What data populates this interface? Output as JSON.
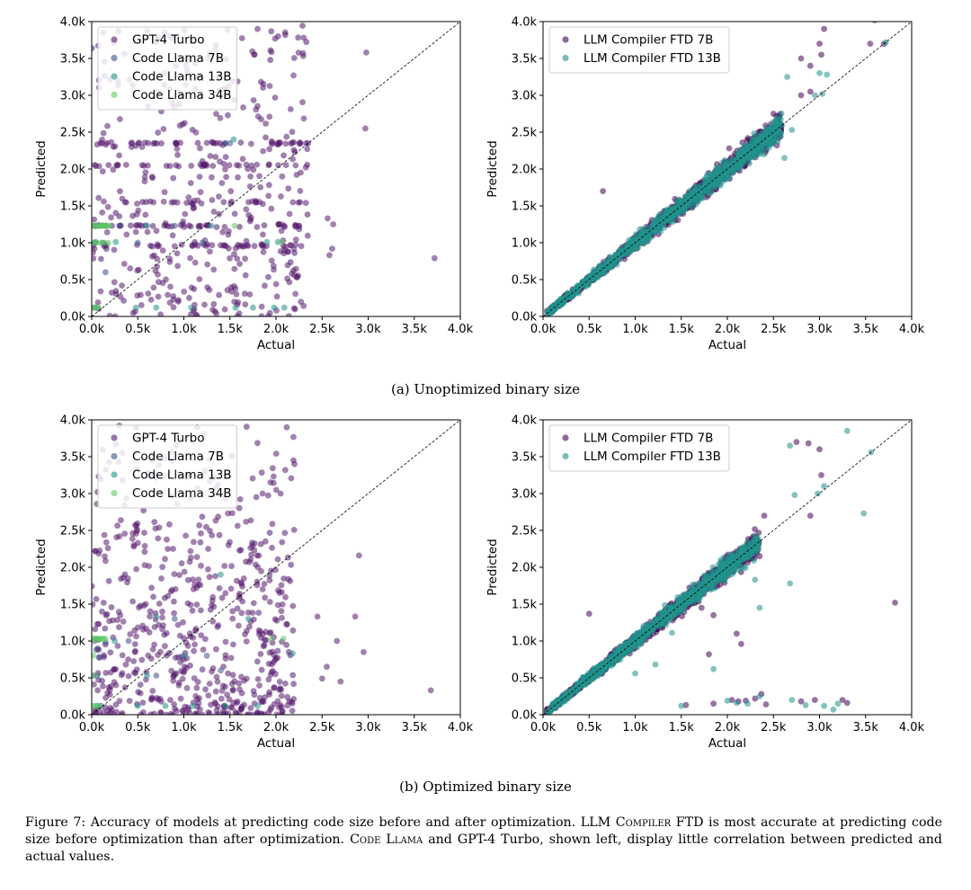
{
  "subcaptions": {
    "a": "(a) Unoptimized binary size",
    "b": "(b) Optimized binary size"
  },
  "caption": {
    "lead": "Figure 7: Accuracy of models at predicting code size before and after optimization.",
    "model": "LLM Compiler",
    "ftd_rest": "FTD is most accurate at predicting code size before optimization than after optimization.",
    "codellama": "Code Llama",
    "end": "and GPT-4 Turbo, shown left, display little correlation between predicted and actual values."
  },
  "colors": {
    "gpt4": "#551a6e",
    "codellama7b": "#3b528b",
    "codellama13b": "#21918c",
    "codellama34b": "#5ec962",
    "ftd7b": "#440154",
    "ftd13b": "#21918c",
    "diagonal": "#000000"
  },
  "chart_data": [
    {
      "id": "a-left",
      "type": "scatter",
      "xlabel": "Actual",
      "ylabel": "Predicted",
      "xlim": [
        0,
        4000
      ],
      "ylim": [
        0,
        4000
      ],
      "xticks": [
        "0.0k",
        "0.5k",
        "1.0k",
        "1.5k",
        "2.0k",
        "2.5k",
        "3.0k",
        "3.5k",
        "4.0k"
      ],
      "yticks": [
        "0.0k",
        "0.5k",
        "1.0k",
        "1.5k",
        "2.0k",
        "2.5k",
        "3.0k",
        "3.5k",
        "4.0k"
      ],
      "legend_position": "top-left",
      "diagonal": true,
      "series": [
        {
          "name": "GPT-4 Turbo",
          "color": "#551a6e",
          "pattern": "uniform",
          "n": 560,
          "xmax": 2350,
          "rows": [
            2350,
            2050,
            1550,
            1230,
            960
          ],
          "outliers": [
            [
              2980,
              3580
            ],
            [
              2970,
              2550
            ],
            [
              3720,
              790
            ],
            [
              2580,
              830
            ],
            [
              2620,
              1250
            ],
            [
              2560,
              1330
            ],
            [
              2610,
              920
            ],
            [
              2100,
              3820
            ],
            [
              2300,
              3780
            ],
            [
              1800,
              3900
            ]
          ]
        },
        {
          "name": "Code Llama 7B",
          "color": "#3b528b",
          "pattern": "bands",
          "points": [
            [
              20,
              1230
            ],
            [
              60,
              1230
            ],
            [
              120,
              1000
            ],
            [
              40,
              1000
            ],
            [
              80,
              1230
            ],
            [
              30,
              120
            ],
            [
              1200,
              1000
            ],
            [
              500,
              1000
            ],
            [
              1450,
              2350
            ],
            [
              300,
              1230
            ],
            [
              150,
              600
            ],
            [
              900,
              1230
            ],
            [
              1500,
              2350
            ]
          ]
        },
        {
          "name": "Code Llama 13B",
          "color": "#21918c",
          "pattern": "bands",
          "points": [
            [
              50,
              120
            ],
            [
              480,
              120
            ],
            [
              700,
              120
            ],
            [
              1080,
              120
            ],
            [
              1560,
              120
            ],
            [
              1750,
              120
            ],
            [
              1980,
              120
            ],
            [
              2090,
              120
            ],
            [
              260,
              1010
            ],
            [
              1900,
              1010
            ],
            [
              40,
              1010
            ],
            [
              600,
              1230
            ],
            [
              1300,
              1230
            ],
            [
              2020,
              1010
            ],
            [
              150,
              1230
            ],
            [
              1540,
              2400
            ]
          ]
        },
        {
          "name": "Code Llama 34B",
          "color": "#5ec962",
          "pattern": "bands",
          "points": [
            [
              10,
              1230
            ],
            [
              30,
              1230
            ],
            [
              50,
              1230
            ],
            [
              70,
              1230
            ],
            [
              90,
              1230
            ],
            [
              110,
              1230
            ],
            [
              130,
              1230
            ],
            [
              150,
              1230
            ],
            [
              170,
              1230
            ],
            [
              190,
              1230
            ],
            [
              20,
              1000
            ],
            [
              60,
              1000
            ],
            [
              100,
              1000
            ],
            [
              140,
              1000
            ],
            [
              180,
              1000
            ],
            [
              10,
              120
            ],
            [
              40,
              120
            ],
            [
              70,
              120
            ],
            [
              2060,
              1010
            ],
            [
              1550,
              1230
            ]
          ]
        }
      ]
    },
    {
      "id": "a-right",
      "type": "scatter",
      "xlabel": "Actual",
      "ylabel": "Predicted",
      "xlim": [
        0,
        4000
      ],
      "ylim": [
        0,
        4000
      ],
      "xticks": [
        "0.0k",
        "0.5k",
        "1.0k",
        "1.5k",
        "2.0k",
        "2.5k",
        "3.0k",
        "3.5k",
        "4.0k"
      ],
      "yticks": [
        "0.0k",
        "0.5k",
        "1.0k",
        "1.5k",
        "2.0k",
        "2.5k",
        "3.0k",
        "3.5k",
        "4.0k"
      ],
      "legend_position": "top-left",
      "diagonal": true,
      "series": [
        {
          "name": "LLM Compiler FTD 7B",
          "color": "#440154",
          "pattern": "diagonal",
          "n": 1100,
          "xmax": 2550,
          "outliers": [
            [
              650,
              1700
            ],
            [
              2800,
              3500
            ],
            [
              3050,
              3900
            ],
            [
              3000,
              3700
            ],
            [
              3020,
              3550
            ],
            [
              3550,
              3700
            ],
            [
              3700,
              3700
            ],
            [
              3600,
              4020
            ],
            [
              2900,
              3400
            ],
            [
              2020,
              2280
            ],
            [
              2500,
              2750
            ],
            [
              2800,
              3000
            ],
            [
              2900,
              3050
            ]
          ]
        },
        {
          "name": "LLM Compiler FTD 13B",
          "color": "#21918c",
          "pattern": "diagonal",
          "n": 1100,
          "xmax": 2550,
          "outliers": [
            [
              2650,
              3250
            ],
            [
              3000,
              3300
            ],
            [
              3080,
              3280
            ],
            [
              2950,
              3000
            ],
            [
              3030,
              3020
            ],
            [
              3720,
              3720
            ],
            [
              2570,
              2620
            ],
            [
              2620,
              2150
            ],
            [
              1050,
              1180
            ],
            [
              2700,
              2530
            ],
            [
              2270,
              2400
            ],
            [
              2400,
              2200
            ]
          ]
        }
      ]
    },
    {
      "id": "b-left",
      "type": "scatter",
      "xlabel": "Actual",
      "ylabel": "Predicted",
      "xlim": [
        0,
        4000
      ],
      "ylim": [
        0,
        4000
      ],
      "xticks": [
        "0.0k",
        "0.5k",
        "1.0k",
        "1.5k",
        "2.0k",
        "2.5k",
        "3.0k",
        "3.5k",
        "4.0k"
      ],
      "yticks": [
        "0.0k",
        "0.5k",
        "1.0k",
        "1.5k",
        "2.0k",
        "2.5k",
        "3.0k",
        "3.5k",
        "4.0k"
      ],
      "legend_position": "top-left",
      "diagonal": true,
      "series": [
        {
          "name": "GPT-4 Turbo",
          "color": "#551a6e",
          "pattern": "uniform",
          "n": 620,
          "xmax": 2200,
          "outliers": [
            [
              3680,
              330
            ],
            [
              2900,
              2160
            ],
            [
              2860,
              1330
            ],
            [
              2950,
              850
            ],
            [
              2550,
              650
            ],
            [
              2500,
              490
            ],
            [
              2700,
              450
            ],
            [
              2660,
              1000
            ],
            [
              2450,
              1330
            ],
            [
              2200,
              3400
            ],
            [
              2100,
              3320
            ],
            [
              2050,
              3000
            ]
          ]
        },
        {
          "name": "Code Llama 7B",
          "color": "#3b528b",
          "pattern": "bands",
          "points": [
            [
              20,
              530
            ],
            [
              60,
              530
            ],
            [
              30,
              1000
            ],
            [
              80,
              780
            ],
            [
              50,
              880
            ],
            [
              100,
              120
            ],
            [
              400,
              1000
            ],
            [
              700,
              530
            ],
            [
              1250,
              800
            ],
            [
              150,
              980
            ],
            [
              900,
              1300
            ],
            [
              1400,
              600
            ]
          ]
        },
        {
          "name": "Code Llama 13B",
          "color": "#21918c",
          "pattern": "bands",
          "points": [
            [
              60,
              120
            ],
            [
              500,
              120
            ],
            [
              800,
              120
            ],
            [
              1100,
              120
            ],
            [
              1450,
              120
            ],
            [
              1800,
              120
            ],
            [
              600,
              530
            ],
            [
              1400,
              1900
            ],
            [
              700,
              1330
            ],
            [
              2180,
              830
            ],
            [
              250,
              1000
            ],
            [
              1000,
              800
            ],
            [
              1700,
              1300
            ],
            [
              50,
              1030
            ]
          ]
        },
        {
          "name": "Code Llama 34B",
          "color": "#5ec962",
          "pattern": "bands",
          "points": [
            [
              10,
              1030
            ],
            [
              30,
              1030
            ],
            [
              50,
              1030
            ],
            [
              70,
              1030
            ],
            [
              90,
              1030
            ],
            [
              110,
              1030
            ],
            [
              130,
              1030
            ],
            [
              150,
              1030
            ],
            [
              20,
              800
            ],
            [
              40,
              530
            ],
            [
              10,
              120
            ],
            [
              40,
              120
            ],
            [
              70,
              120
            ],
            [
              2080,
              1030
            ],
            [
              1950,
              1030
            ]
          ]
        }
      ]
    },
    {
      "id": "b-right",
      "type": "scatter",
      "xlabel": "Actual",
      "ylabel": "Predicted",
      "xlim": [
        0,
        4000
      ],
      "ylim": [
        0,
        4000
      ],
      "xticks": [
        "0.0k",
        "0.5k",
        "1.0k",
        "1.5k",
        "2.0k",
        "2.5k",
        "3.0k",
        "3.5k",
        "4.0k"
      ],
      "yticks": [
        "0.0k",
        "0.5k",
        "1.0k",
        "1.5k",
        "2.0k",
        "2.5k",
        "3.0k",
        "3.5k",
        "4.0k"
      ],
      "legend_position": "top-left",
      "diagonal": true,
      "series": [
        {
          "name": "LLM Compiler FTD 7B",
          "color": "#440154",
          "pattern": "diagonal",
          "n": 1100,
          "xmax": 2300,
          "outliers": [
            [
              500,
              1370
            ],
            [
              3820,
              1520
            ],
            [
              2750,
              3700
            ],
            [
              2880,
              3680
            ],
            [
              3000,
              3600
            ],
            [
              3020,
              3250
            ],
            [
              2900,
              2700
            ],
            [
              2400,
              2700
            ],
            [
              2350,
              2150
            ],
            [
              1850,
              1350
            ],
            [
              1720,
              1450
            ],
            [
              2100,
              1100
            ],
            [
              2150,
              960
            ],
            [
              1800,
              820
            ],
            [
              3300,
              160
            ],
            [
              3250,
              200
            ],
            [
              1550,
              130
            ],
            [
              1850,
              150
            ],
            [
              2050,
              200
            ],
            [
              2120,
              180
            ],
            [
              2200,
              190
            ],
            [
              2300,
              220
            ],
            [
              2370,
              280
            ],
            [
              2420,
              140
            ],
            [
              2800,
              180
            ],
            [
              2950,
              200
            ]
          ]
        },
        {
          "name": "LLM Compiler FTD 13B",
          "color": "#21918c",
          "pattern": "diagonal",
          "n": 1100,
          "xmax": 2300,
          "outliers": [
            [
              3300,
              3850
            ],
            [
              3560,
              3560
            ],
            [
              2680,
              3650
            ],
            [
              2980,
              3000
            ],
            [
              3050,
              3100
            ],
            [
              2730,
              2980
            ],
            [
              3480,
              2730
            ],
            [
              2680,
              1780
            ],
            [
              2300,
              1830
            ],
            [
              2350,
              1450
            ],
            [
              1400,
              1110
            ],
            [
              1000,
              560
            ],
            [
              1220,
              680
            ],
            [
              1500,
              120
            ],
            [
              2000,
              190
            ],
            [
              2100,
              160
            ],
            [
              2220,
              150
            ],
            [
              2350,
              250
            ],
            [
              2850,
              130
            ],
            [
              3050,
              120
            ],
            [
              3150,
              70
            ],
            [
              3200,
              150
            ],
            [
              2700,
              200
            ],
            [
              1850,
              620
            ]
          ]
        }
      ]
    }
  ]
}
